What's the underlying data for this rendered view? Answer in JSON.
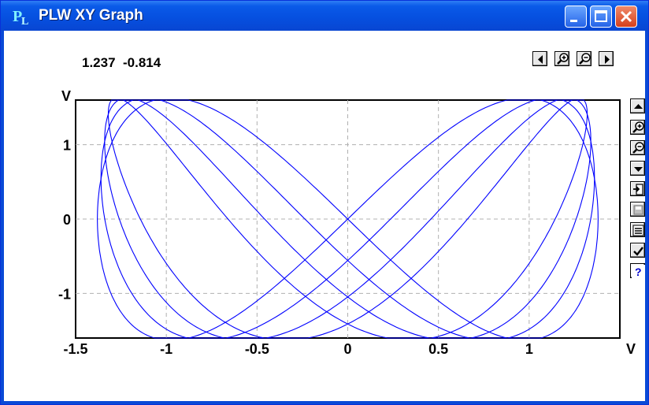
{
  "window": {
    "title": "PLW XY Graph",
    "icon": "plw-app-icon",
    "controls": [
      "minimize-icon",
      "maximize-icon",
      "close-icon"
    ]
  },
  "cursor_readout": "1.237  -0.814",
  "top_toolbar": [
    "scroll-left-icon",
    "zoom-in-icon",
    "zoom-out-icon",
    "scroll-right-icon"
  ],
  "side_toolbar": [
    "scroll-up-icon",
    "zoom-in-icon",
    "zoom-out-icon",
    "scroll-down-icon",
    "export-icon",
    "save-icon",
    "list-icon",
    "check-icon",
    "help-icon"
  ],
  "colors": {
    "trace": "#0000ff",
    "titlebar": "#0a5ae8",
    "grid": "#b0b0b0"
  },
  "chart_data": {
    "type": "scatter",
    "mode": "lines",
    "xlabel": "V",
    "ylabel": "V",
    "xlim": [
      -1.5,
      1.5
    ],
    "ylim": [
      -1.6,
      1.6
    ],
    "xticks": [
      -1.5,
      -1,
      -0.5,
      0,
      0.5,
      1
    ],
    "xtick_labels": [
      "-1.5",
      "-1",
      "-0.5",
      "0",
      "0.5",
      "1"
    ],
    "yticks": [
      1,
      0,
      -1
    ],
    "ytick_labels": [
      "1",
      "0",
      "-1"
    ],
    "grid": true,
    "series": [
      {
        "curve": "lissajous",
        "x_amplitude": 1.38,
        "y_amplitude": 1.63,
        "x_phase_deg": 0
      },
      {
        "curve": "lissajous",
        "x_amplitude": 1.36,
        "y_amplitude": 1.63,
        "x_phase_deg": 10
      },
      {
        "curve": "lissajous",
        "x_amplitude": 1.34,
        "y_amplitude": 1.63,
        "x_phase_deg": 20
      },
      {
        "curve": "lissajous",
        "x_amplitude": 1.32,
        "y_amplitude": 1.63,
        "x_phase_deg": 30
      }
    ]
  }
}
